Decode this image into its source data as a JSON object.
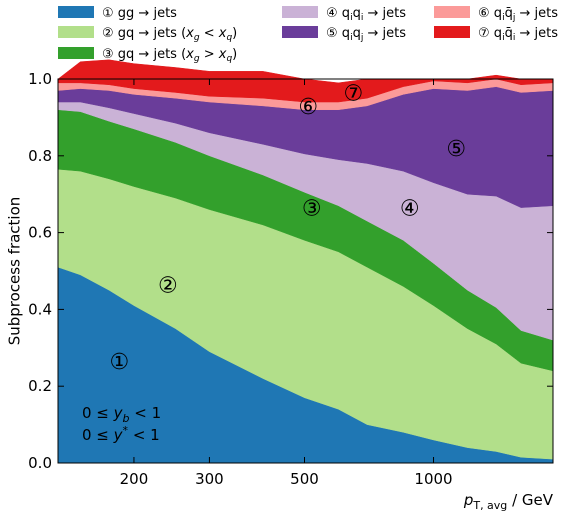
{
  "chart_data": {
    "type": "area",
    "stacked": true,
    "x_scale": "log",
    "xlabel": "p_T,avg / GeV",
    "xlabel_main": "p",
    "xlabel_sub": "T, avg",
    "xlabel_unit": " / GeV",
    "ylabel": "Subprocess fraction",
    "xlim": [
      133,
      1900
    ],
    "ylim": [
      0,
      1
    ],
    "x_ticks": [
      200,
      300,
      500,
      1000
    ],
    "x_tick_labels": [
      "200",
      "300",
      "500",
      "1000"
    ],
    "y_ticks": [
      0.0,
      0.2,
      0.4,
      0.6,
      0.8,
      1.0
    ],
    "y_tick_labels": [
      "0.0",
      "0.2",
      "0.4",
      "0.6",
      "0.8",
      "1.0"
    ],
    "x": [
      133,
      150,
      175,
      200,
      250,
      300,
      400,
      500,
      600,
      700,
      850,
      1000,
      1200,
      1400,
      1600,
      1900
    ],
    "series": [
      {
        "name": "① gg → jets",
        "color": "#1f77b4",
        "values": [
          0.51,
          0.49,
          0.45,
          0.41,
          0.35,
          0.29,
          0.22,
          0.17,
          0.14,
          0.1,
          0.08,
          0.06,
          0.04,
          0.03,
          0.015,
          0.01
        ]
      },
      {
        "name": "② gq → jets (x_g < x_q)",
        "color": "#b2df8a",
        "values": [
          0.255,
          0.27,
          0.29,
          0.31,
          0.34,
          0.37,
          0.4,
          0.41,
          0.41,
          0.41,
          0.38,
          0.35,
          0.31,
          0.28,
          0.245,
          0.23
        ]
      },
      {
        "name": "③ gq → jets (x_g > x_q)",
        "color": "#33a02c",
        "values": [
          0.155,
          0.155,
          0.15,
          0.15,
          0.145,
          0.14,
          0.13,
          0.125,
          0.12,
          0.12,
          0.12,
          0.11,
          0.1,
          0.095,
          0.085,
          0.08
        ]
      },
      {
        "name": "④ q_i q_i → jets",
        "color": "#cab2d6",
        "values": [
          0.02,
          0.025,
          0.035,
          0.04,
          0.05,
          0.06,
          0.08,
          0.1,
          0.12,
          0.15,
          0.18,
          0.21,
          0.25,
          0.29,
          0.32,
          0.35
        ]
      },
      {
        "name": "⑤ q_i q_j → jets",
        "color": "#6a3d9a",
        "values": [
          0.03,
          0.035,
          0.045,
          0.05,
          0.065,
          0.08,
          0.1,
          0.115,
          0.13,
          0.15,
          0.2,
          0.245,
          0.27,
          0.285,
          0.3,
          0.3
        ]
      },
      {
        "name": "⑥ q_i q̄_j → jets",
        "color": "#fb9a99",
        "values": [
          0.02,
          0.015,
          0.015,
          0.015,
          0.015,
          0.015,
          0.02,
          0.02,
          0.02,
          0.02,
          0.02,
          0.02,
          0.02,
          0.02,
          0.02,
          0.02
        ]
      },
      {
        "name": "⑦ q_i q̄_i → jets",
        "color": "#e31a1c",
        "values": [
          0.01,
          0.055,
          0.065,
          0.065,
          0.065,
          0.065,
          0.07,
          0.06,
          0.05,
          0.05,
          0.02,
          0.005,
          0.01,
          0.01,
          0.015,
          0.01
        ]
      }
    ],
    "legend": {
      "placement": "top, outside plot, three columns",
      "entries": [
        {
          "glyph": "①",
          "text": "gg → jets",
          "color": "#1f77b4"
        },
        {
          "glyph": "②",
          "text": "gq → jets (x",
          "sub1": "g",
          "mid": " < x",
          "sub2": "q",
          "tail": ")",
          "color": "#b2df8a"
        },
        {
          "glyph": "③",
          "text": "gq → jets (x",
          "sub1": "g",
          "mid": " > x",
          "sub2": "q",
          "tail": ")",
          "color": "#33a02c"
        },
        {
          "glyph": "④",
          "text": "q",
          "sub1": "i",
          "mid": "q",
          "sub2": "i",
          "tail": " → jets",
          "color": "#cab2d6"
        },
        {
          "glyph": "⑤",
          "text": "q",
          "sub1": "i",
          "mid": "q",
          "sub2": "j",
          "tail": " → jets",
          "color": "#6a3d9a"
        },
        {
          "glyph": "⑥",
          "text": "q",
          "sub1": "i",
          "mid": "q̄",
          "sub2": "j",
          "tail": " → jets",
          "color": "#fb9a99"
        },
        {
          "glyph": "⑦",
          "text": "q",
          "sub1": "i",
          "mid": "q̄",
          "sub2": "i",
          "tail": " → jets",
          "color": "#e31a1c"
        }
      ]
    },
    "annotations": [
      {
        "label": "①",
        "x": 185,
        "y": 0.265
      },
      {
        "label": "②",
        "x": 240,
        "y": 0.465
      },
      {
        "label": "③",
        "x": 520,
        "y": 0.665
      },
      {
        "label": "④",
        "x": 880,
        "y": 0.665
      },
      {
        "label": "⑤",
        "x": 1130,
        "y": 0.82
      },
      {
        "label": "⑥",
        "x": 510,
        "y": 0.93
      },
      {
        "label": "⑦",
        "x": 650,
        "y": 0.965
      }
    ],
    "cuts": [
      {
        "lhs": "0 ≤ y",
        "sub": "b",
        "rhs": " < 1"
      },
      {
        "lhs": "0 ≤ y",
        "sup": "*",
        "rhs": " < 1"
      }
    ]
  }
}
